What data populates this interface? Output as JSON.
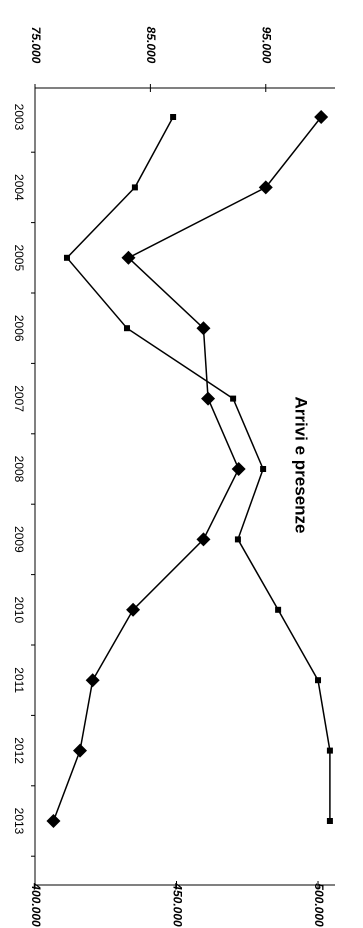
{
  "chart_data": {
    "type": "line",
    "title": "Arrivi e presenze",
    "categories": [
      "2003",
      "2004",
      "2005",
      "2006",
      "2007",
      "2008",
      "2009",
      "2010",
      "2011",
      "2012",
      "2013"
    ],
    "series": [
      {
        "color": "#000000",
        "marker": "diamond",
        "values": [
          99800,
          95000,
          83100,
          89600,
          90000,
          92650,
          89600,
          83500,
          80000,
          78900,
          76600
        ]
      },
      {
        "color": "#000000",
        "marker": "square",
        "axis": "y2",
        "values": [
          448800,
          435300,
          411300,
          432500,
          470000,
          480600,
          471700,
          485900,
          500000,
          504200,
          504200
        ]
      }
    ],
    "ylim": [
      75000,
      101000
    ],
    "yticks": [
      {
        "value": 75000,
        "label": "75.000"
      },
      {
        "value": 85000,
        "label": "85.000"
      },
      {
        "value": 95000,
        "label": "95.000"
      }
    ],
    "y2lim": [
      400000,
      506000
    ],
    "y2ticks": [
      {
        "value": 400000,
        "label": "400.000"
      },
      {
        "value": 450000,
        "label": "450.000"
      },
      {
        "value": 500000,
        "label": "500.000"
      }
    ]
  }
}
